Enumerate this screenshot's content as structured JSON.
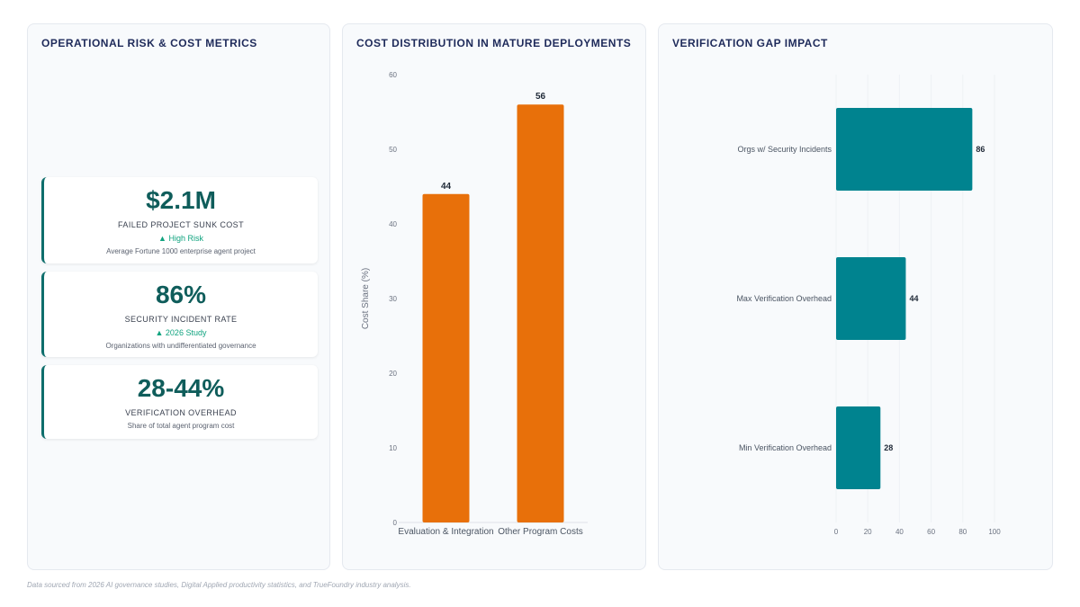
{
  "metrics_panel": {
    "title": "OPERATIONAL RISK & COST METRICS",
    "cards": [
      {
        "value": "$2.1M",
        "label": "FAILED PROJECT SUNK COST",
        "badge": "▲ High Risk",
        "description": "Average Fortune 1000 enterprise agent project"
      },
      {
        "value": "86%",
        "label": "SECURITY INCIDENT RATE",
        "badge": "▲ 2026 Study",
        "description": "Organizations with undifferentiated governance"
      },
      {
        "value": "28-44%",
        "label": "VERIFICATION OVERHEAD",
        "badge": "",
        "description": "Share of total agent program cost"
      }
    ]
  },
  "cost_panel": {
    "title": "COST DISTRIBUTION IN MATURE DEPLOYMENTS"
  },
  "gap_panel": {
    "title": "VERIFICATION GAP IMPACT"
  },
  "chart_data": [
    {
      "type": "bar",
      "title": "COST DISTRIBUTION IN MATURE DEPLOYMENTS",
      "categories": [
        "Evaluation & Integration",
        "Other Program Costs"
      ],
      "values": [
        44,
        56
      ],
      "ylabel": "Cost Share (%)",
      "xlabel": "",
      "ylim": [
        0,
        60
      ],
      "yticks": [
        0,
        10,
        20,
        30,
        40,
        50,
        60
      ],
      "grid": false,
      "colors": {
        "bar": "#e8700a"
      }
    },
    {
      "type": "bar",
      "orientation": "horizontal",
      "title": "VERIFICATION GAP IMPACT",
      "categories": [
        "Orgs w/ Security Incidents",
        "Max Verification Overhead",
        "Min Verification Overhead"
      ],
      "values": [
        86,
        44,
        28
      ],
      "xlim": [
        0,
        100
      ],
      "xticks": [
        0,
        20,
        40,
        60,
        80,
        100
      ],
      "xlabel": "",
      "ylabel": "",
      "grid": true,
      "colors": {
        "bar": "#00838f"
      }
    }
  ],
  "footnote": "Data sourced from 2026 AI governance studies, Digital Applied productivity statistics, and TrueFoundry industry analysis."
}
